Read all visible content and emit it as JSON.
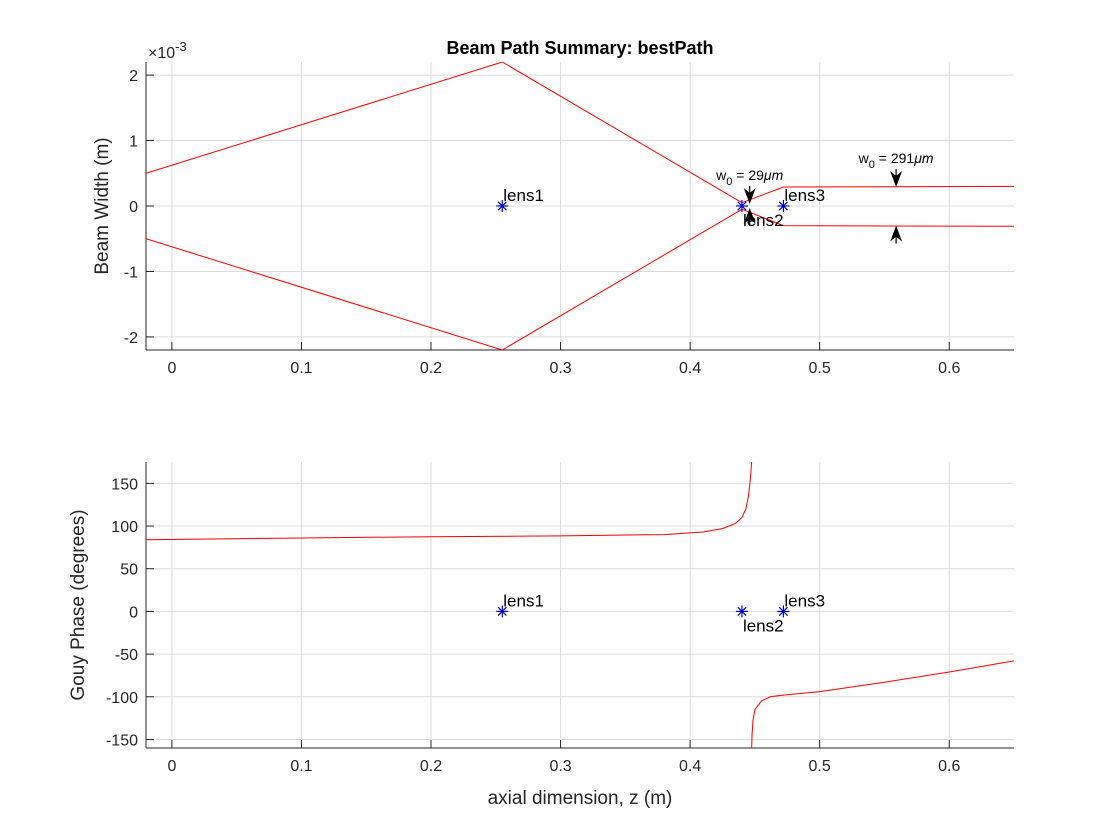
{
  "chart_data": [
    {
      "type": "line",
      "title": "Beam Path Summary: bestPath",
      "ylabel": "Beam Width (m)",
      "xlabel": "",
      "y_exponent_label": "×10",
      "y_exponent_power": "-3",
      "xlim": [
        -0.02,
        0.65
      ],
      "ylim": [
        -2.2,
        2.2
      ],
      "y_scale_factor": 0.001,
      "x_ticks": [
        0,
        0.1,
        0.2,
        0.3,
        0.4,
        0.5,
        0.6
      ],
      "x_tick_labels": [
        "0",
        "0.1",
        "0.2",
        "0.3",
        "0.4",
        "0.5",
        "0.6"
      ],
      "y_ticks": [
        -2,
        -1,
        0,
        1,
        2
      ],
      "y_tick_labels": [
        "-2",
        "-1",
        "0",
        "1",
        "2"
      ],
      "grid": true,
      "line_color": "#ff0000",
      "marker_color": "#0000cc",
      "series": [
        {
          "x": [
            -0.02,
            0.255,
            0.44,
            0.472,
            0.65
          ],
          "y": [
            0.5,
            2.2,
            0.05,
            0.29,
            0.3
          ]
        },
        {
          "x": [
            -0.02,
            0.255,
            0.44,
            0.472,
            0.65
          ],
          "y": [
            -0.5,
            -2.2,
            -0.05,
            -0.3,
            -0.31
          ]
        }
      ],
      "lenses": [
        {
          "label": "lens1",
          "x": 0.255,
          "y": 0,
          "label_pos": "above"
        },
        {
          "label": "lens2",
          "x": 0.44,
          "y": 0,
          "label_pos": "below"
        },
        {
          "label": "lens3",
          "x": 0.472,
          "y": 0,
          "label_pos": "above"
        }
      ],
      "waists": [
        {
          "label_prefix": "w",
          "label_sub": "0",
          "label_value": " = 29",
          "label_unit": "μm",
          "x": 0.446,
          "top": 0.03,
          "bottom": -0.03
        },
        {
          "label_prefix": "w",
          "label_sub": "0",
          "label_value": " = 291",
          "label_unit": "μm",
          "x": 0.559,
          "top": 0.29,
          "bottom": -0.3
        }
      ]
    },
    {
      "type": "line",
      "title": "",
      "ylabel": "Gouy Phase (degrees)",
      "xlabel": "axial dimension, z (m)",
      "xlim": [
        -0.02,
        0.65
      ],
      "ylim": [
        -160,
        175
      ],
      "x_ticks": [
        0,
        0.1,
        0.2,
        0.3,
        0.4,
        0.5,
        0.6
      ],
      "x_tick_labels": [
        "0",
        "0.1",
        "0.2",
        "0.3",
        "0.4",
        "0.5",
        "0.6"
      ],
      "y_ticks": [
        -150,
        -100,
        -50,
        0,
        50,
        100,
        150
      ],
      "y_tick_labels": [
        "-150",
        "-100",
        "-50",
        "0",
        "50",
        "100",
        "150"
      ],
      "grid": true,
      "line_color": "#ff0000",
      "marker_color": "#0000cc",
      "series": [
        {
          "x": [
            -0.02,
            0.1,
            0.2,
            0.3,
            0.38,
            0.41,
            0.425,
            0.435,
            0.44
          ],
          "y": [
            84,
            86,
            87.5,
            88.5,
            90,
            93,
            97,
            103,
            110
          ]
        },
        {
          "x": [
            0.44,
            0.443,
            0.445,
            0.4465,
            0.4475
          ],
          "y": [
            110,
            120,
            135,
            155,
            175
          ]
        },
        {
          "x": [
            0.4475,
            0.4478,
            0.4485,
            0.45,
            0.455,
            0.462,
            0.472,
            0.5,
            0.55,
            0.6,
            0.65
          ],
          "y": [
            -160,
            -145,
            -128,
            -115,
            -105,
            -100,
            -98,
            -94,
            -83,
            -71,
            -58
          ]
        }
      ],
      "lenses": [
        {
          "label": "lens1",
          "x": 0.255,
          "y": 0,
          "label_pos": "above"
        },
        {
          "label": "lens2",
          "x": 0.44,
          "y": 0,
          "label_pos": "below"
        },
        {
          "label": "lens3",
          "x": 0.472,
          "y": 0,
          "label_pos": "above"
        }
      ]
    }
  ]
}
